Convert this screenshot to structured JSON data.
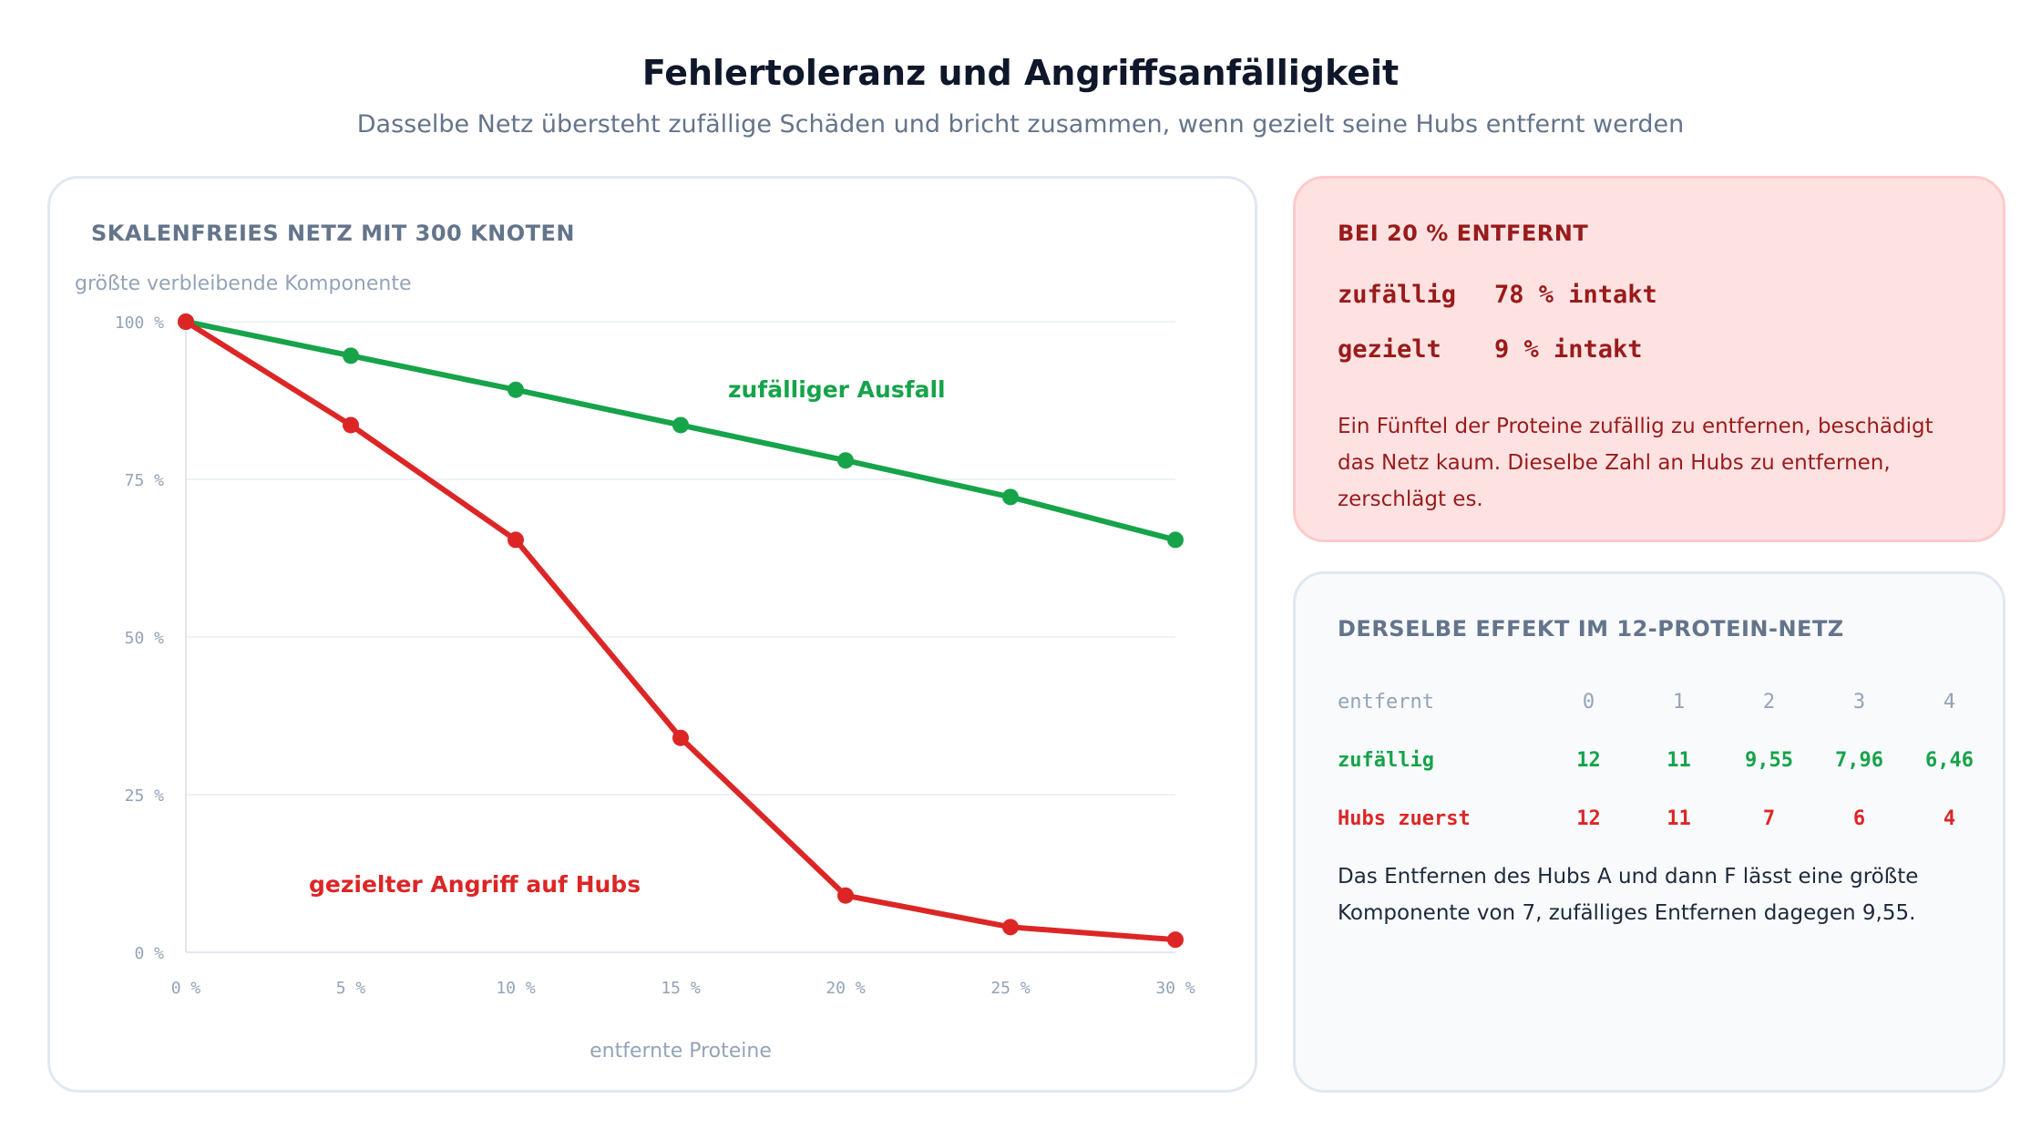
{
  "header": {
    "title": "Fehlertoleranz und Angriffsanfälligkeit",
    "subtitle": "Dasselbe Netz übersteht zufällige Schäden und bricht zusammen, wenn gezielt seine Hubs entfernt werden"
  },
  "chart_card": {
    "heading": "SKALENFREIES NETZ MIT 300 KNOTEN"
  },
  "chart_data": {
    "type": "line",
    "ylabel": "größte verbleibende Komponente",
    "xlabel": "entfernte Proteine",
    "x": [
      0,
      5,
      10,
      15,
      20,
      25,
      30
    ],
    "x_tick_labels": [
      "0 %",
      "5 %",
      "10 %",
      "15 %",
      "20 %",
      "25 %",
      "30 %"
    ],
    "y_ticks": [
      0,
      25,
      50,
      75,
      100
    ],
    "y_tick_labels": [
      "0 %",
      "25 %",
      "50 %",
      "75 %",
      "100 %"
    ],
    "xlim": [
      0,
      30
    ],
    "ylim": [
      0,
      100
    ],
    "grid": true,
    "series": [
      {
        "name": "zufälliger Ausfall",
        "color": "#16a34a",
        "values": [
          100,
          94.6,
          89.2,
          83.6,
          78,
          72.2,
          65.4
        ]
      },
      {
        "name": "gezielter Angriff auf Hubs",
        "color": "#dc2626",
        "values": [
          100,
          83.6,
          65.4,
          34,
          9,
          4,
          2
        ]
      }
    ]
  },
  "summary_card": {
    "heading": "BEI 20 % ENTFERNT",
    "random_label": "zufällig",
    "random_value": "78 % intakt",
    "targeted_label": "gezielt",
    "targeted_value": "9 % intakt",
    "note": "Ein Fünftel der Proteine zufällig zu entfernen, beschädigt das Netz kaum. Dieselbe Zahl an Hubs zu entfernen, zerschlägt es."
  },
  "effect_card": {
    "heading": "DERSELBE EFFEKT IM 12-PROTEIN-NETZ",
    "header_label": "entfernt",
    "removed": [
      "0",
      "1",
      "2",
      "3",
      "4"
    ],
    "random_label": "zufällig",
    "random": [
      "12",
      "11",
      "9,55",
      "7,96",
      "6,46"
    ],
    "hubs_label": "Hubs zuerst",
    "hubs": [
      "12",
      "11",
      "7",
      "6",
      "4"
    ],
    "note": "Das Entfernen des Hubs A und dann F lässt eine größte Komponente von 7, zufälliges Entfernen dagegen 9,55."
  },
  "colors": {
    "random": "#16a34a",
    "targeted": "#dc2626",
    "grid": "#e2e8f0",
    "tick": "#94a3b8"
  }
}
